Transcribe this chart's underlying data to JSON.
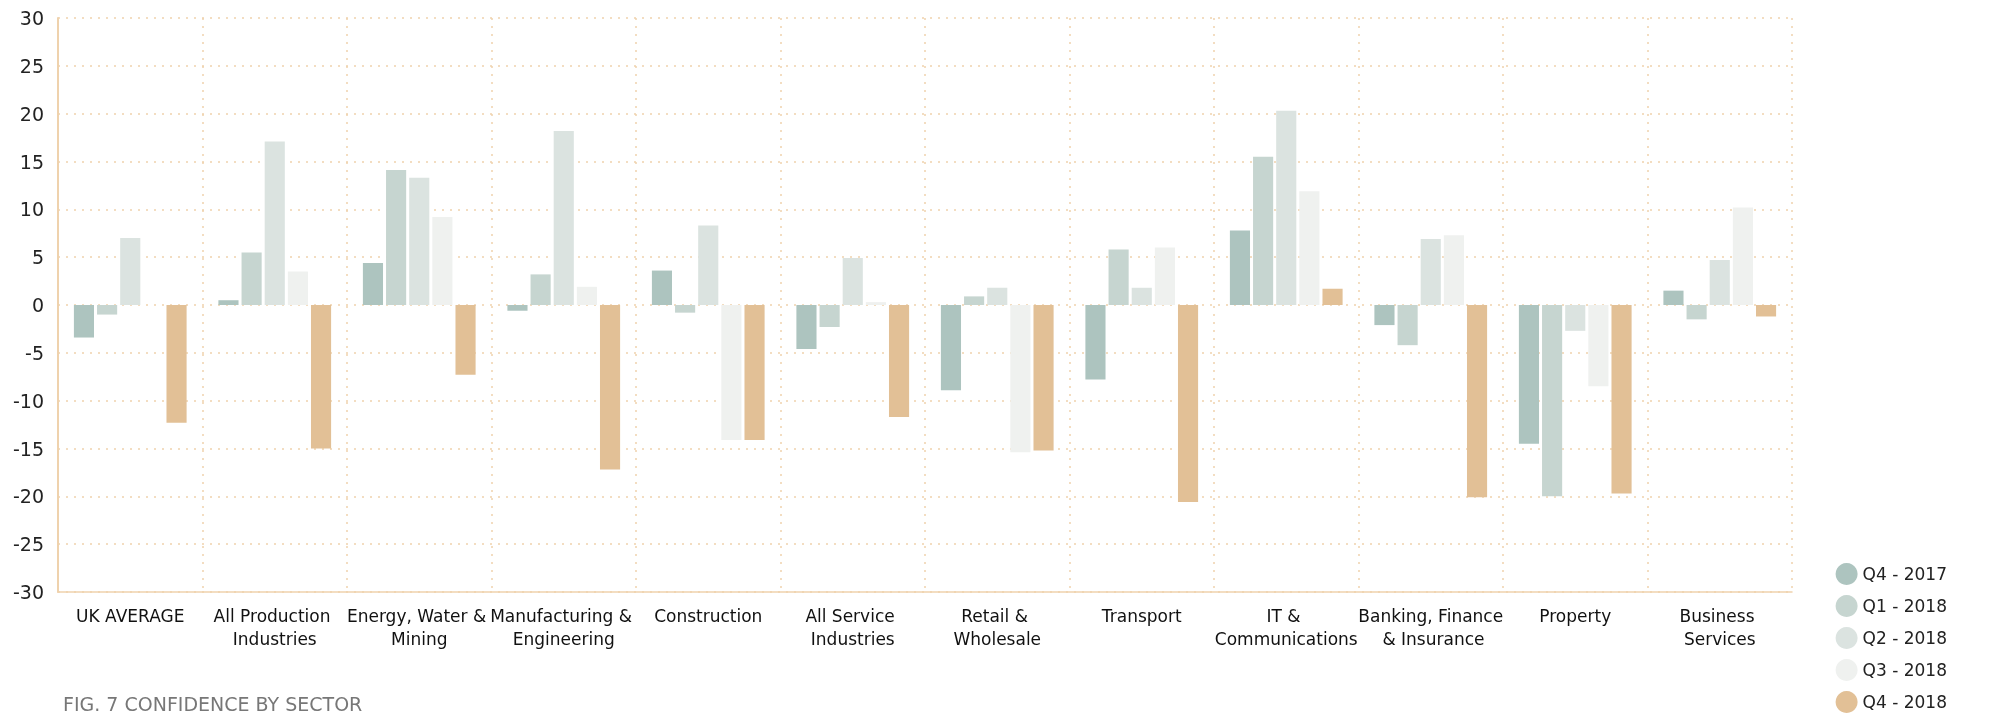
{
  "chart_data": {
    "type": "bar",
    "title": "FIG. 7 CONFIDENCE BY SECTOR",
    "categories": [
      "UK AVERAGE",
      "All Production Industries",
      "Energy, Water & Mining",
      "Manufacturing & Engineering",
      "Construction",
      "All Service Industries",
      "Retail & Wholesale",
      "Transport",
      "IT & Communications",
      "Banking, Finance & Insurance",
      "Property",
      "Business Services"
    ],
    "series": [
      {
        "name": "Q4 - 2017",
        "color": "#adc4bf",
        "values": [
          -3.4,
          0.5,
          4.4,
          -0.6,
          3.6,
          -4.6,
          -8.9,
          -7.8,
          7.8,
          -2.1,
          -14.5,
          1.5
        ]
      },
      {
        "name": "Q1 - 2018",
        "color": "#c6d5d0",
        "values": [
          -1.0,
          5.5,
          14.1,
          3.2,
          -0.8,
          -2.3,
          0.9,
          5.8,
          15.5,
          -4.2,
          -20.0,
          -1.5
        ]
      },
      {
        "name": "Q2 - 2018",
        "color": "#dbe3e0",
        "values": [
          7.0,
          17.1,
          13.3,
          18.2,
          8.3,
          4.9,
          1.8,
          1.8,
          20.3,
          6.9,
          -2.7,
          4.7
        ]
      },
      {
        "name": "Q3 - 2018",
        "color": "#eff1ef",
        "values": [
          null,
          3.5,
          9.2,
          1.9,
          -14.1,
          0.3,
          -15.4,
          6.0,
          11.9,
          7.3,
          -8.5,
          10.2
        ]
      },
      {
        "name": "Q4 - 2018",
        "color": "#e2c096",
        "values": [
          -12.3,
          -15.0,
          -7.3,
          -17.2,
          -14.1,
          -11.7,
          -15.2,
          -20.6,
          1.7,
          -20.1,
          -19.7,
          -1.2
        ]
      }
    ],
    "ylim": [
      -30,
      30
    ],
    "yticks": [
      -30,
      -25,
      -20,
      -15,
      -10,
      -5,
      0,
      5,
      10,
      15,
      20,
      25,
      30
    ],
    "grid": true,
    "legend": "bottom right"
  }
}
